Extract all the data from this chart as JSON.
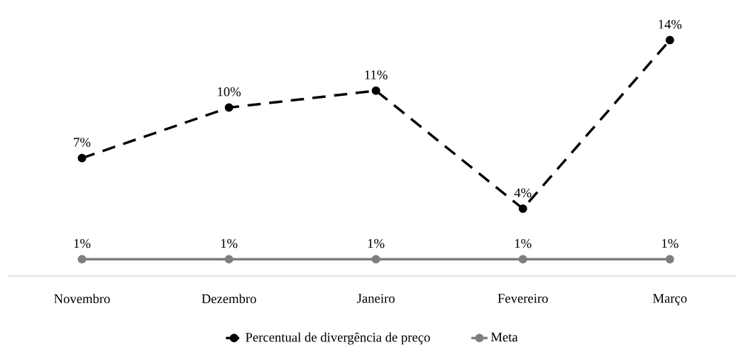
{
  "chart_data": {
    "type": "line",
    "categories": [
      "Novembro",
      "Dezembro",
      "Janeiro",
      "Fevereiro",
      "Março"
    ],
    "series": [
      {
        "name": "Percentual de divergência de preço",
        "color": "#000000",
        "line_style": "dashed",
        "values": [
          7,
          10,
          11,
          4,
          14
        ],
        "value_labels": [
          "7%",
          "10%",
          "11%",
          "4%",
          "14%"
        ]
      },
      {
        "name": "Meta",
        "color": "#7f7f7f",
        "line_style": "solid",
        "values": [
          1,
          1,
          1,
          1,
          1
        ],
        "value_labels": [
          "1%",
          "1%",
          "1%",
          "1%",
          "1%"
        ]
      }
    ],
    "marker": "circle",
    "legend": "bottom"
  }
}
